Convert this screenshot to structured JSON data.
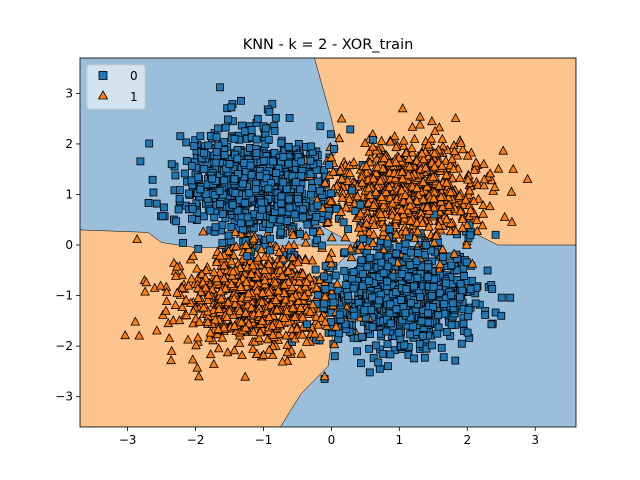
{
  "chart_data": {
    "type": "scatter",
    "title": "KNN - k = 2 - XOR_train",
    "xlabel": "",
    "ylabel": "",
    "xlim": [
      -3.7,
      3.6
    ],
    "ylim": [
      -3.6,
      3.7
    ],
    "xticks": [
      -3,
      -2,
      -1,
      0,
      1,
      2,
      3
    ],
    "yticks": [
      -3,
      -2,
      -1,
      0,
      1,
      2,
      3
    ],
    "xtick_labels": [
      "−3",
      "−2",
      "−1",
      "0",
      "1",
      "2",
      "3"
    ],
    "ytick_labels": [
      "−3",
      "−2",
      "−1",
      "0",
      "1",
      "2",
      "3"
    ],
    "grid": false,
    "legend_placement": "top-left",
    "regions": {
      "class0_color": "#9bbfdb",
      "class1_color": "#fdc48e"
    },
    "series": [
      {
        "name": "0",
        "marker": "square",
        "color": "#1f77b4",
        "clusters": [
          {
            "cx": -1.1,
            "cy": 1.2,
            "sx": 0.55,
            "sy": 0.55,
            "count": 850
          },
          {
            "cx": 1.05,
            "cy": -1.0,
            "sx": 0.55,
            "sy": 0.5,
            "count": 850
          }
        ],
        "extreme_points": [
          [
            -1.45,
            2.45
          ],
          [
            -1.2,
            2.35
          ],
          [
            -2.35,
            1.6
          ],
          [
            -2.2,
            0.3
          ],
          [
            1.4,
            -2.05
          ],
          [
            2.5,
            -1.4
          ],
          [
            -0.1,
            -2.65
          ],
          [
            0.05,
            -2.2
          ]
        ]
      },
      {
        "name": "1",
        "marker": "triangle",
        "color": "#ff7f0e",
        "clusters": [
          {
            "cx": 1.1,
            "cy": 1.05,
            "sx": 0.55,
            "sy": 0.5,
            "count": 850
          },
          {
            "cx": -1.05,
            "cy": -1.05,
            "sx": 0.55,
            "sy": 0.5,
            "count": 850
          }
        ],
        "extreme_points": [
          [
            1.05,
            2.7
          ],
          [
            0.15,
            2.5
          ],
          [
            2.55,
            0.55
          ],
          [
            2.65,
            1.05
          ],
          [
            -2.75,
            -0.7
          ],
          [
            -2.6,
            -0.85
          ],
          [
            -1.95,
            -2.6
          ],
          [
            -0.1,
            -2.6
          ],
          [
            -2.35,
            -2.1
          ],
          [
            -2.4,
            -1.55
          ]
        ]
      }
    ],
    "boundary": {
      "class1_upper_right_polygon": [
        [
          -0.25,
          3.7
        ],
        [
          3.6,
          3.7
        ],
        [
          3.6,
          0.0
        ],
        [
          2.45,
          0.0
        ],
        [
          2.0,
          0.3
        ],
        [
          1.6,
          0.2
        ],
        [
          1.0,
          0.05
        ],
        [
          0.3,
          0.05
        ],
        [
          -0.05,
          0.3
        ],
        [
          -0.3,
          0.5
        ],
        [
          -0.2,
          0.9
        ],
        [
          -0.15,
          1.4
        ],
        [
          0.0,
          1.7
        ],
        [
          0.1,
          1.9
        ],
        [
          0.0,
          2.5
        ],
        [
          -0.25,
          3.7
        ]
      ],
      "class1_lower_left_polygon": [
        [
          -3.7,
          -3.6
        ],
        [
          -0.75,
          -3.6
        ],
        [
          -0.45,
          -2.95
        ],
        [
          -0.05,
          -2.4
        ],
        [
          0.05,
          -1.5
        ],
        [
          -0.05,
          -0.6
        ],
        [
          0.15,
          -0.3
        ],
        [
          0.4,
          0.0
        ],
        [
          -0.5,
          0.0
        ],
        [
          -1.2,
          -0.05
        ],
        [
          -2.0,
          -0.05
        ],
        [
          -2.5,
          0.05
        ],
        [
          -2.7,
          0.25
        ],
        [
          -3.7,
          0.3
        ],
        [
          -3.7,
          -3.6
        ]
      ]
    }
  }
}
